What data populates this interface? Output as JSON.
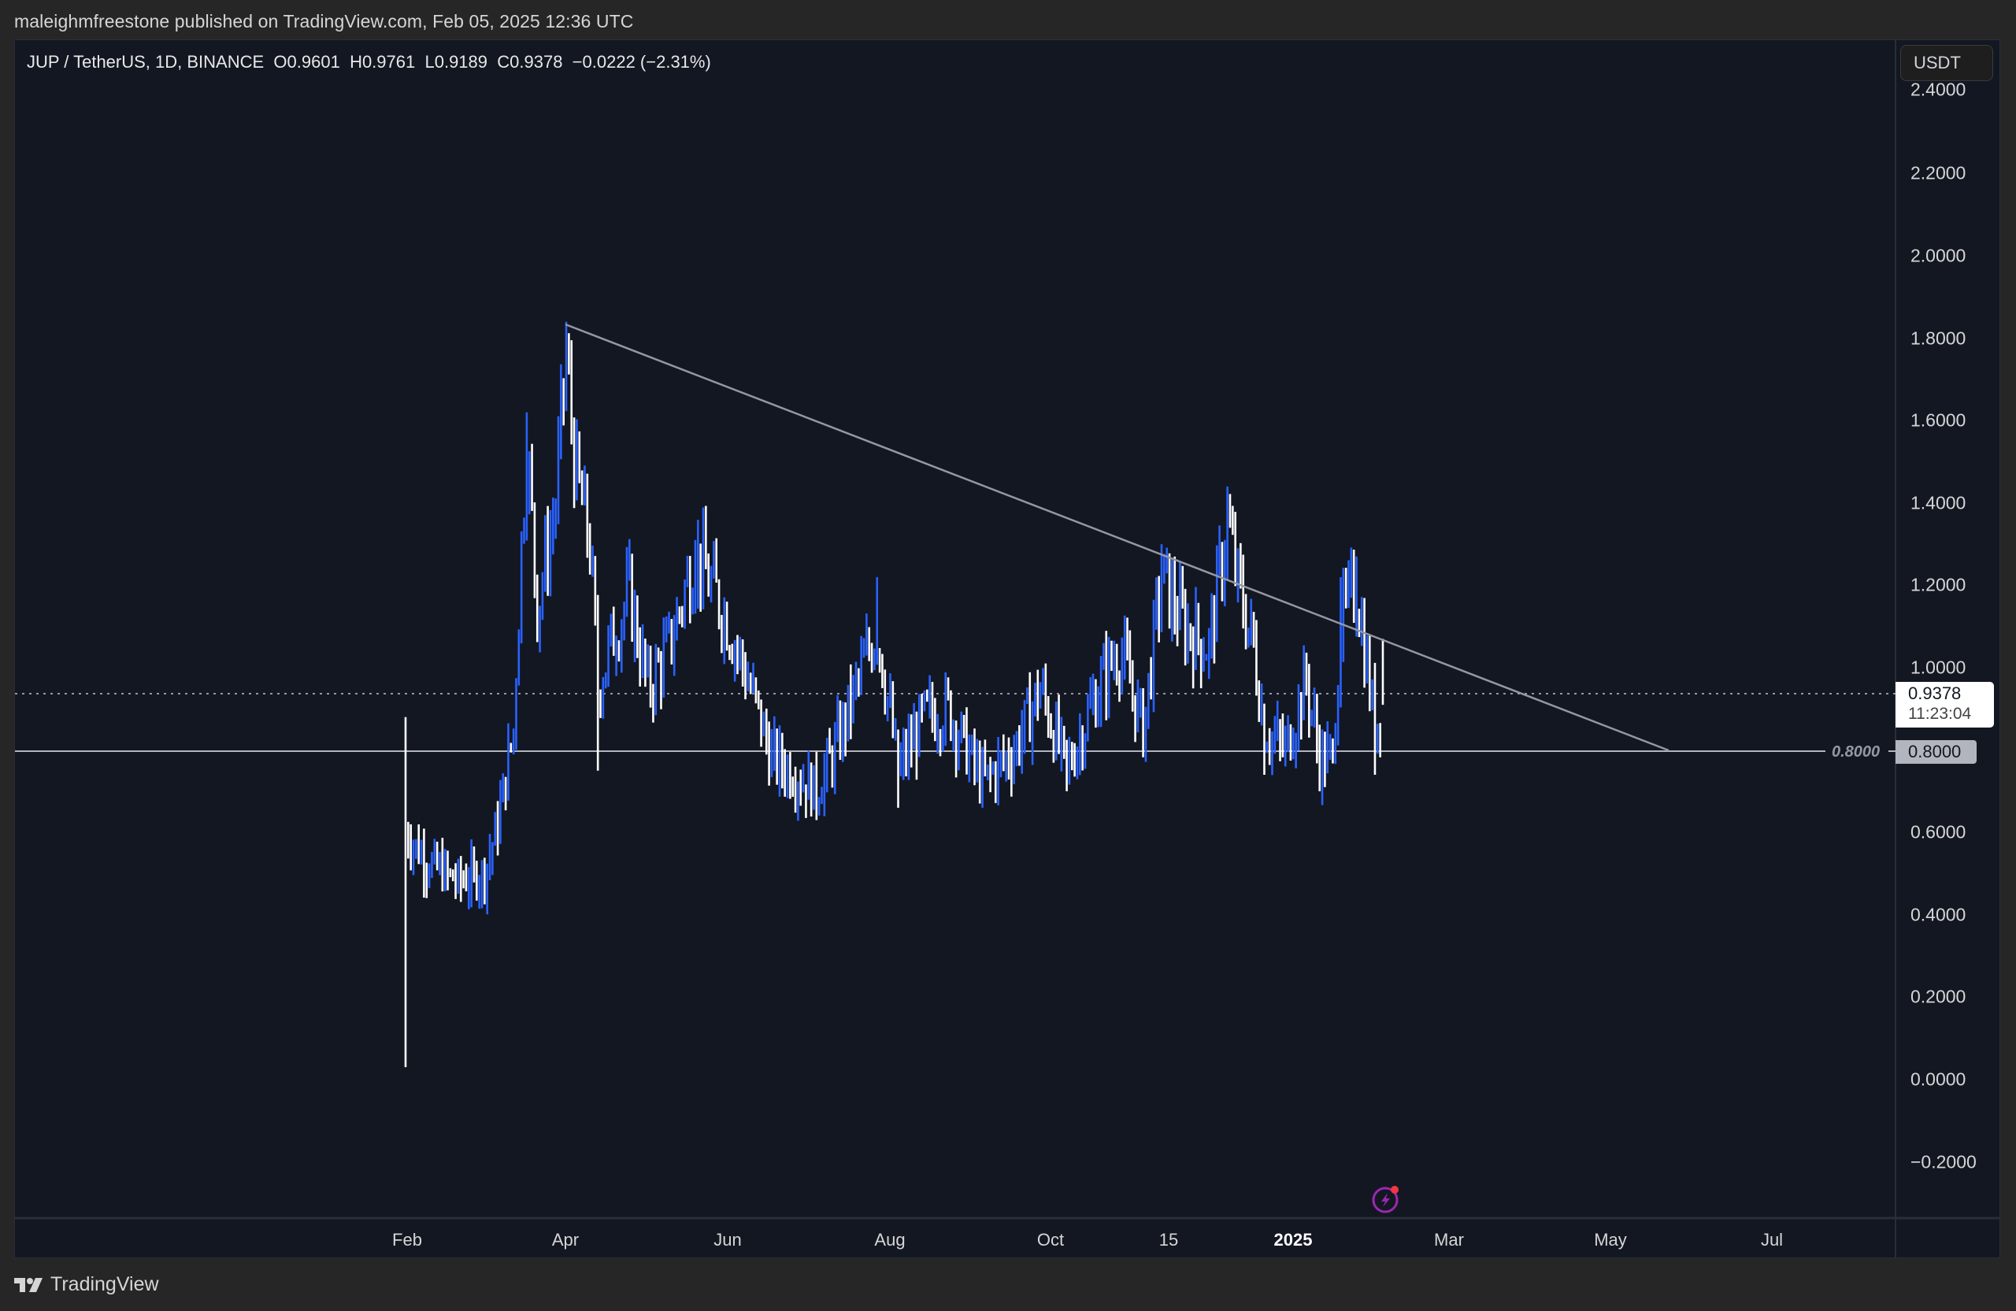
{
  "header": {
    "published_by": "maleighmfreestone published on TradingView.com, Feb 05, 2025 12:36 UTC"
  },
  "legend": {
    "symbol": "JUP / TetherUS, 1D, BINANCE",
    "open": "O0.9601",
    "high": "H0.9761",
    "low": "L0.9189",
    "close": "C0.9378",
    "change": "−0.0222 (−2.31%)"
  },
  "currency_button": "USDT",
  "price_axis": {
    "ticks": [
      "2.4000",
      "2.2000",
      "2.0000",
      "1.8000",
      "1.6000",
      "1.4000",
      "1.2000",
      "1.0000",
      "0.6000",
      "0.4000",
      "0.2000",
      "0.0000",
      "−0.2000"
    ],
    "last_price": "0.9378",
    "countdown": "11:23:04",
    "level_label": "0.8000",
    "level_inline_label": "0.8000"
  },
  "time_axis": {
    "ticks": [
      {
        "label": "Feb",
        "bold": false
      },
      {
        "label": "Apr",
        "bold": false
      },
      {
        "label": "Jun",
        "bold": false
      },
      {
        "label": "Aug",
        "bold": false
      },
      {
        "label": "Oct",
        "bold": false
      },
      {
        "label": "15",
        "bold": false
      },
      {
        "label": "2025",
        "bold": true
      },
      {
        "label": "Mar",
        "bold": false
      },
      {
        "label": "May",
        "bold": false
      },
      {
        "label": "Jul",
        "bold": false
      }
    ]
  },
  "footer": {
    "brand": "TradingView"
  },
  "icons": {
    "alert": "lightning-alert-icon",
    "logo": "tradingview-logo-icon"
  },
  "colors": {
    "background": "#131722",
    "frame": "#262626",
    "up_bar": "#2962ff",
    "down_bar": "#ffffff",
    "trendline": "#9598a1",
    "level_line": "#b2b5be",
    "alert_purple": "#9c27b0",
    "alert_dot": "#f23645"
  },
  "chart_data": {
    "type": "candlestick",
    "title": "JUP / TetherUS, 1D, BINANCE",
    "xlabel": "",
    "ylabel": "USDT",
    "ylim": [
      -0.3,
      2.45
    ],
    "grid": false,
    "x_range": [
      "2024-01-31",
      "2025-07-31"
    ],
    "x_ticks": [
      "Feb",
      "Apr",
      "Jun",
      "Aug",
      "Oct",
      "15",
      "2025",
      "Mar",
      "May",
      "Jul"
    ],
    "y_ticks": [
      -0.2,
      0.0,
      0.2,
      0.4,
      0.6,
      0.8,
      1.0,
      1.2,
      1.4,
      1.6,
      1.8,
      2.0,
      2.2,
      2.4
    ],
    "last": {
      "open": 0.9601,
      "high": 0.9761,
      "low": 0.9189,
      "close": 0.9378,
      "change": -0.0222,
      "change_pct": -2.31
    },
    "annotations": {
      "descending_trendline": {
        "from": {
          "date": "2024-04-01",
          "price": 1.84
        },
        "to": {
          "date": "2025-05-28",
          "price": 0.8
        }
      },
      "horizontal_support": 0.8,
      "current_price_line": 0.9378
    },
    "approx_path": {
      "description": "Approximate daily price path (close levels) read from the chart, sampled at key turning points",
      "points": [
        {
          "date": "2024-01-31",
          "price": 0.6,
          "high": 0.88,
          "low": 0.03
        },
        {
          "date": "2024-02-08",
          "price": 0.53
        },
        {
          "date": "2024-02-20",
          "price": 0.48
        },
        {
          "date": "2024-03-01",
          "price": 0.5
        },
        {
          "date": "2024-03-06",
          "price": 0.62
        },
        {
          "date": "2024-03-12",
          "price": 0.85
        },
        {
          "date": "2024-03-15",
          "price": 1.3
        },
        {
          "date": "2024-03-17",
          "price": 1.55,
          "high": 1.62
        },
        {
          "date": "2024-03-21",
          "price": 1.15
        },
        {
          "date": "2024-03-28",
          "price": 1.4
        },
        {
          "date": "2024-04-01",
          "price": 1.75,
          "high": 1.84
        },
        {
          "date": "2024-04-05",
          "price": 1.45
        },
        {
          "date": "2024-04-10",
          "price": 1.3
        },
        {
          "date": "2024-04-13",
          "price": 0.95,
          "low": 0.75
        },
        {
          "date": "2024-04-20",
          "price": 1.1
        },
        {
          "date": "2024-04-25",
          "price": 1.18
        },
        {
          "date": "2024-05-02",
          "price": 0.95
        },
        {
          "date": "2024-05-10",
          "price": 1.05
        },
        {
          "date": "2024-05-20",
          "price": 1.28,
          "high": 1.31
        },
        {
          "date": "2024-06-01",
          "price": 1.12
        },
        {
          "date": "2024-06-10",
          "price": 0.95
        },
        {
          "date": "2024-06-18",
          "price": 0.78
        },
        {
          "date": "2024-06-26",
          "price": 0.75
        },
        {
          "date": "2024-07-05",
          "price": 0.7,
          "low": 0.63
        },
        {
          "date": "2024-07-12",
          "price": 0.8
        },
        {
          "date": "2024-07-20",
          "price": 0.95
        },
        {
          "date": "2024-07-28",
          "price": 1.1,
          "high": 1.22
        },
        {
          "date": "2024-08-05",
          "price": 0.75,
          "low": 0.66
        },
        {
          "date": "2024-08-15",
          "price": 0.88
        },
        {
          "date": "2024-08-24",
          "price": 0.9
        },
        {
          "date": "2024-09-06",
          "price": 0.72,
          "low": 0.66
        },
        {
          "date": "2024-09-18",
          "price": 0.8
        },
        {
          "date": "2024-09-28",
          "price": 0.95
        },
        {
          "date": "2024-10-08",
          "price": 0.75,
          "low": 0.7
        },
        {
          "date": "2024-10-20",
          "price": 0.95
        },
        {
          "date": "2024-10-28",
          "price": 1.05
        },
        {
          "date": "2024-11-06",
          "price": 0.85
        },
        {
          "date": "2024-11-13",
          "price": 1.22,
          "high": 1.3
        },
        {
          "date": "2024-11-22",
          "price": 1.1
        },
        {
          "date": "2024-12-01",
          "price": 1.05
        },
        {
          "date": "2024-12-08",
          "price": 1.35,
          "high": 1.44
        },
        {
          "date": "2024-12-12",
          "price": 1.2
        },
        {
          "date": "2024-12-18",
          "price": 1.05
        },
        {
          "date": "2024-12-22",
          "price": 0.85,
          "low": 0.74
        },
        {
          "date": "2024-12-30",
          "price": 0.8
        },
        {
          "date": "2025-01-07",
          "price": 0.97
        },
        {
          "date": "2025-01-12",
          "price": 0.78,
          "low": 0.7
        },
        {
          "date": "2025-01-17",
          "price": 0.78
        },
        {
          "date": "2025-01-20",
          "price": 1.1,
          "high": 1.22
        },
        {
          "date": "2025-01-26",
          "price": 1.2,
          "high": 1.27
        },
        {
          "date": "2025-02-02",
          "price": 0.85,
          "low": 0.74
        },
        {
          "date": "2025-02-05",
          "price": 0.9378,
          "high": 0.9761,
          "low": 0.9189
        }
      ]
    }
  }
}
